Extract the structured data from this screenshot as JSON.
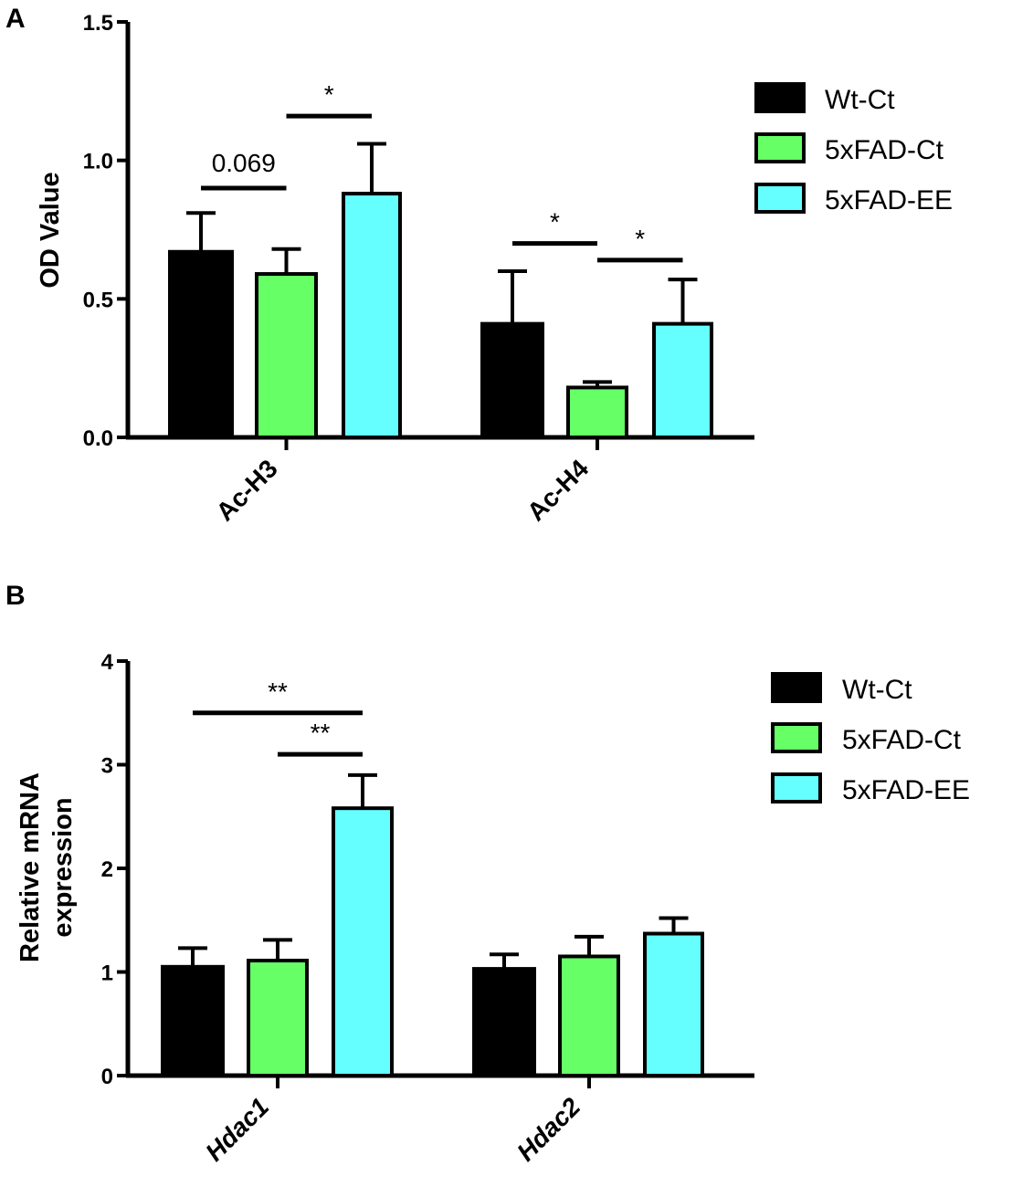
{
  "chart_data": [
    {
      "panel": "A",
      "type": "bar",
      "ylabel": "OD Value",
      "ylim": [
        0,
        1.5
      ],
      "yticks": [
        "0.0",
        "0.5",
        "1.0",
        "1.5"
      ],
      "categories": [
        "Ac-H3",
        "Ac-H4"
      ],
      "category_style": "normal",
      "series": [
        {
          "name": "Wt-Ct",
          "color": "#000000",
          "values": [
            0.67,
            0.41
          ],
          "errors": [
            0.14,
            0.19
          ]
        },
        {
          "name": "5xFAD-Ct",
          "color": "#66ff66",
          "values": [
            0.59,
            0.18
          ],
          "errors": [
            0.09,
            0.02
          ]
        },
        {
          "name": "5xFAD-EE",
          "color": "#66ffff",
          "values": [
            0.88,
            0.41
          ],
          "errors": [
            0.18,
            0.16
          ]
        }
      ],
      "significance": [
        {
          "category": 0,
          "from": 0,
          "to": 1,
          "y": 0.9,
          "label": "0.069"
        },
        {
          "category": 0,
          "from": 1,
          "to": 2,
          "y": 1.16,
          "label": "*"
        },
        {
          "category": 1,
          "from": 0,
          "to": 1,
          "y": 0.7,
          "label": "*"
        },
        {
          "category": 1,
          "from": 1,
          "to": 2,
          "y": 0.64,
          "label": "*"
        }
      ],
      "legend_position": "top-right"
    },
    {
      "panel": "B",
      "type": "bar",
      "ylabel": "Relative mRNA expression",
      "ylabel_lines": [
        "Relative mRNA",
        "expression"
      ],
      "ylim": [
        0,
        4
      ],
      "yticks": [
        "0",
        "1",
        "2",
        "3",
        "4"
      ],
      "categories": [
        "Hdac1",
        "Hdac2"
      ],
      "category_style": "italic",
      "series": [
        {
          "name": "Wt-Ct",
          "color": "#000000",
          "values": [
            1.05,
            1.03
          ],
          "errors": [
            0.18,
            0.14
          ]
        },
        {
          "name": "5xFAD-Ct",
          "color": "#66ff66",
          "values": [
            1.11,
            1.15
          ],
          "errors": [
            0.2,
            0.19
          ]
        },
        {
          "name": "5xFAD-EE",
          "color": "#66ffff",
          "values": [
            2.58,
            1.37
          ],
          "errors": [
            0.32,
            0.15
          ]
        }
      ],
      "significance": [
        {
          "category": 0,
          "from": 0,
          "to": 2,
          "y": 3.5,
          "label": "**"
        },
        {
          "category": 0,
          "from": 1,
          "to": 2,
          "y": 3.1,
          "label": "**"
        }
      ],
      "legend_position": "top-right"
    }
  ]
}
